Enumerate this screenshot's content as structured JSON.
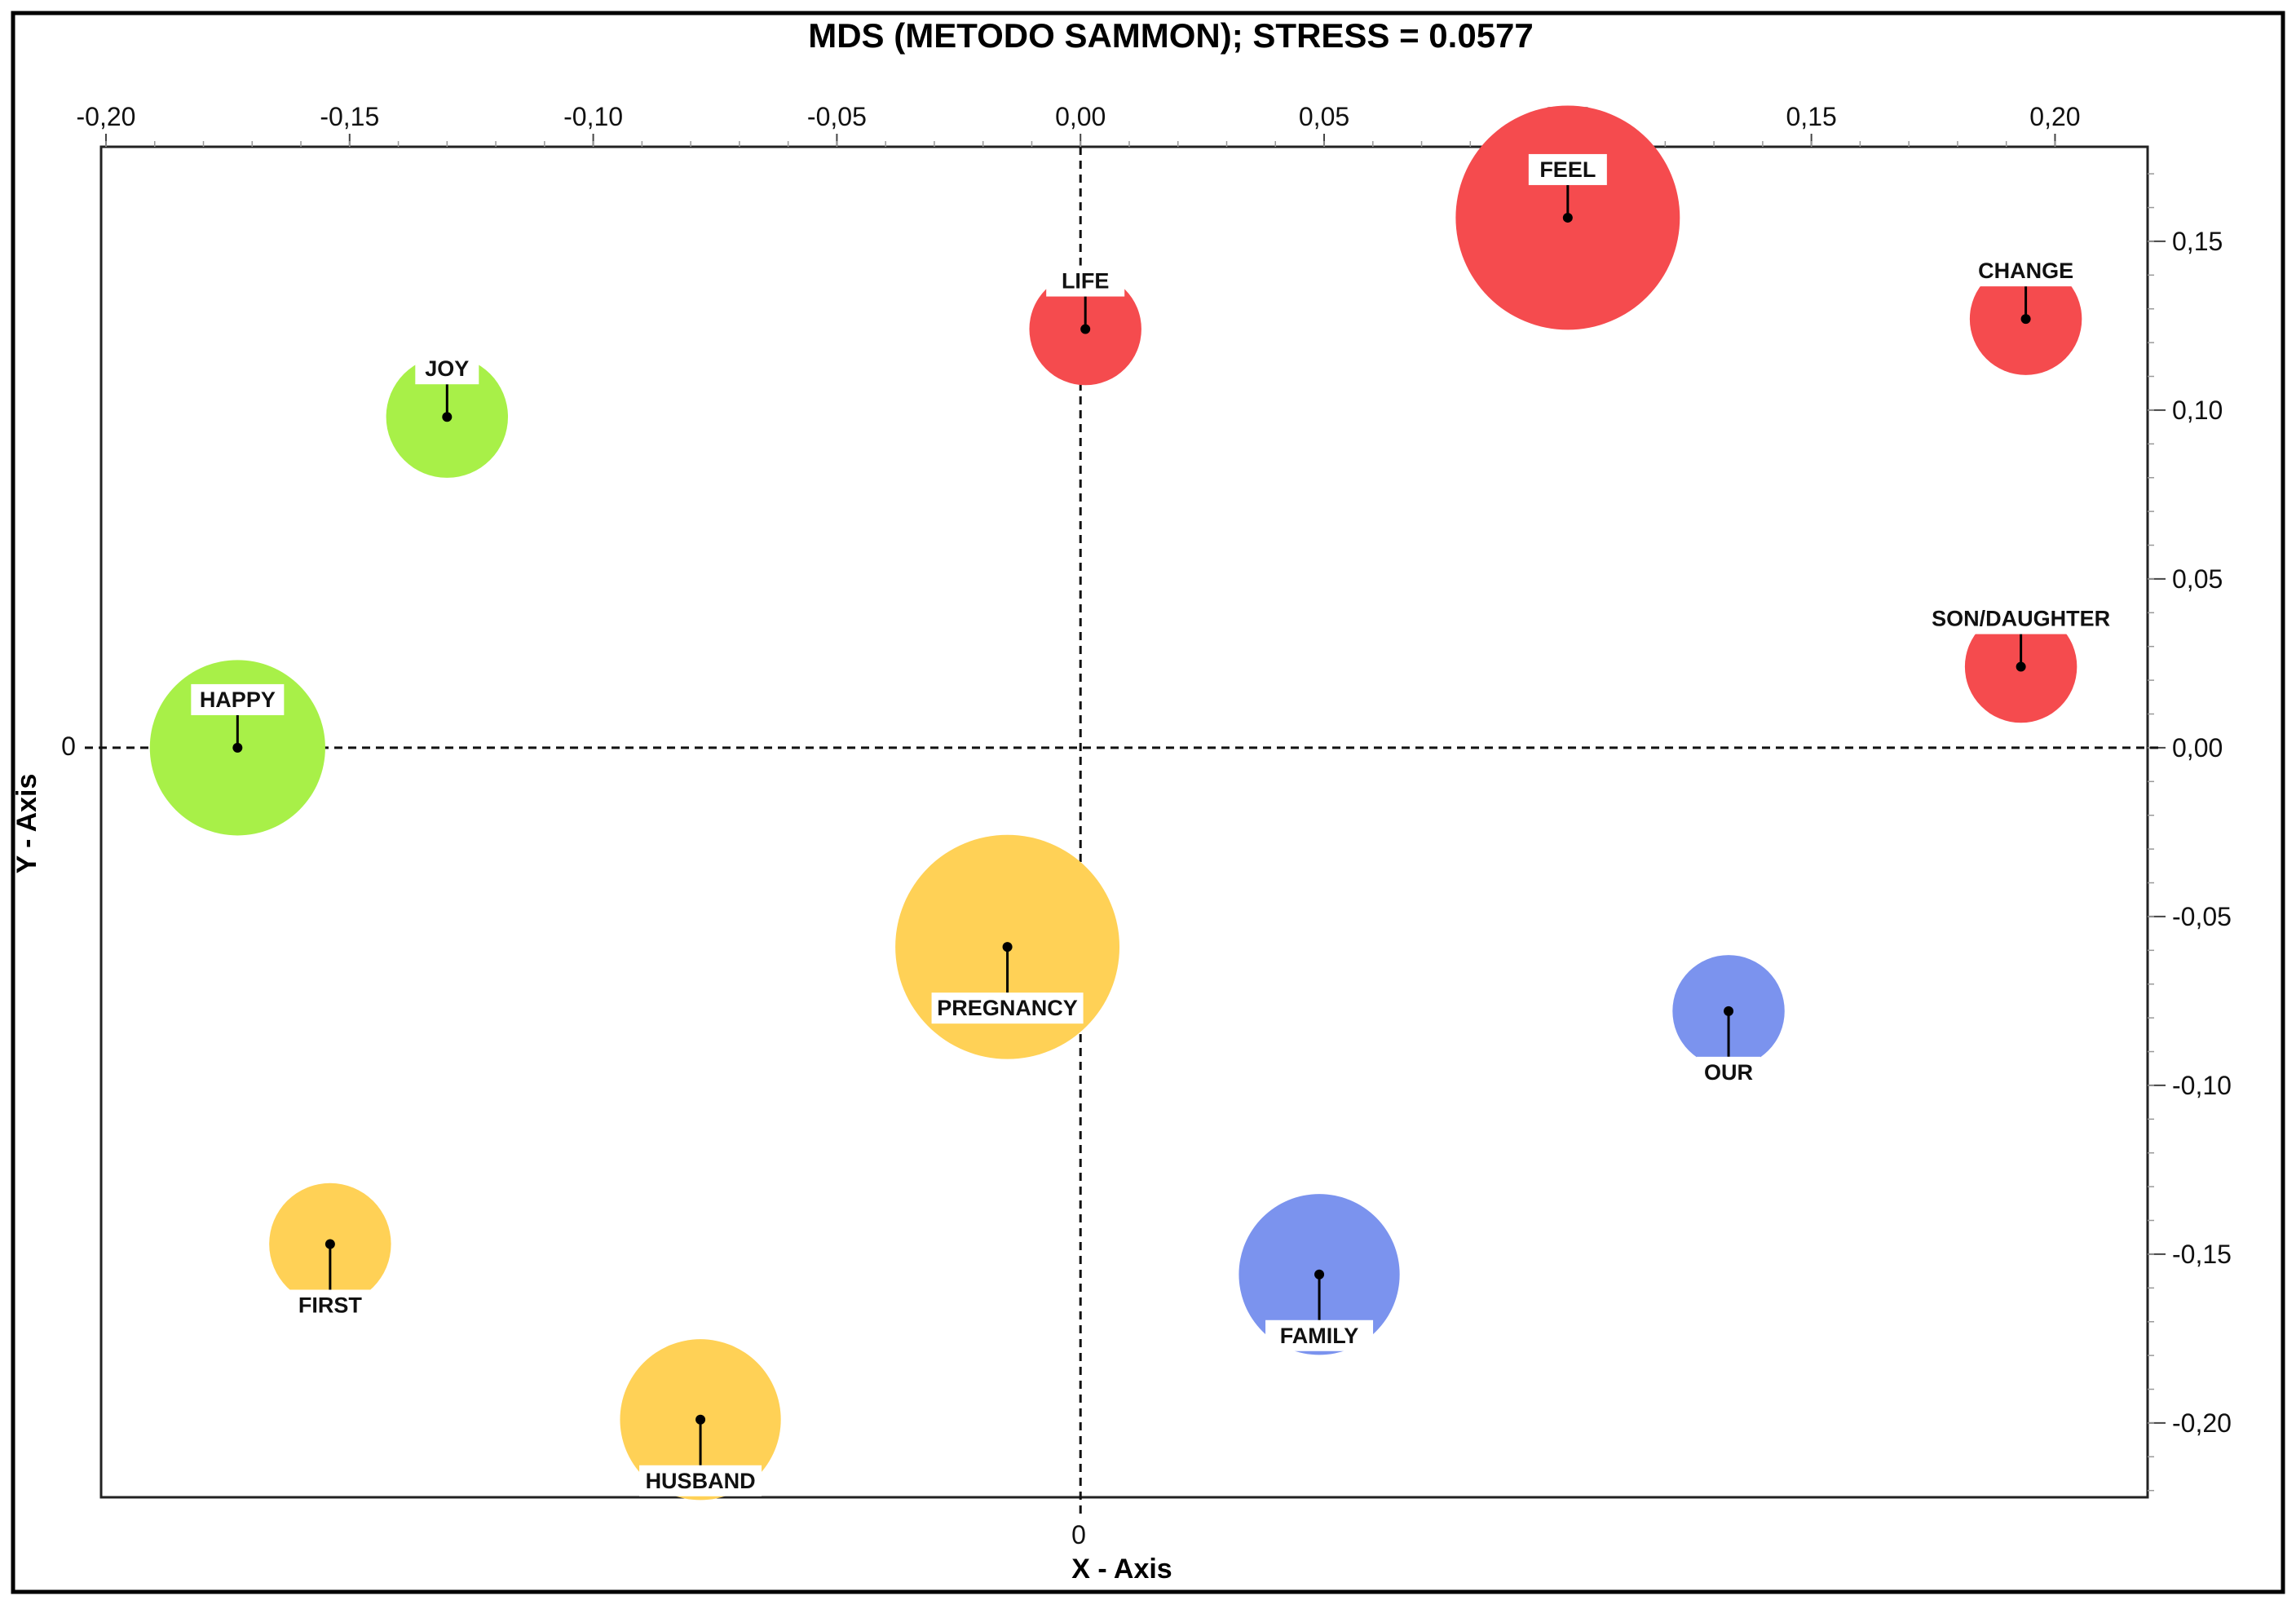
{
  "chart_data": {
    "type": "scatter",
    "title": "MDS (METODO SAMMON); STRESS = 0.0577",
    "xlabel": "X - Axis",
    "ylabel": "Y - Axis",
    "xlim": [
      -0.201,
      0.219
    ],
    "ylim": [
      -0.222,
      0.178
    ],
    "x_ticks": [
      {
        "value": -0.2,
        "label": "-0,20"
      },
      {
        "value": -0.15,
        "label": "-0,15"
      },
      {
        "value": -0.1,
        "label": "-0,10"
      },
      {
        "value": -0.05,
        "label": "-0,05"
      },
      {
        "value": 0.0,
        "label": "0,00"
      },
      {
        "value": 0.05,
        "label": "0,05"
      },
      {
        "value": 0.1,
        "label": "0,10"
      },
      {
        "value": 0.15,
        "label": "0,15"
      },
      {
        "value": 0.2,
        "label": "0,20"
      }
    ],
    "y_ticks": [
      {
        "value": 0.15,
        "label": "0,15"
      },
      {
        "value": 0.1,
        "label": "0,10"
      },
      {
        "value": 0.05,
        "label": "0,05"
      },
      {
        "value": 0.0,
        "label": "0,00"
      },
      {
        "value": -0.05,
        "label": "-0,05"
      },
      {
        "value": -0.1,
        "label": "-0,10"
      },
      {
        "value": -0.15,
        "label": "-0,15"
      },
      {
        "value": -0.2,
        "label": "-0,20"
      }
    ],
    "zero_x_label": "0",
    "zero_y_label": "0",
    "reference_lines": {
      "x": 0,
      "y": 0,
      "style": "dashed"
    },
    "colors": {
      "red": "#f54b4e",
      "green": "#a8f048",
      "yellow": "#ffd156",
      "blue": "#7b93ee"
    },
    "points": [
      {
        "label": "FEEL",
        "x": 0.1,
        "y": 0.157,
        "size": 0.023,
        "color": "#f54b4e",
        "label_pos": "above"
      },
      {
        "label": "LIFE",
        "x": 0.001,
        "y": 0.124,
        "size": 0.0115,
        "color": "#f54b4e",
        "label_pos": "above"
      },
      {
        "label": "CHANGE",
        "x": 0.194,
        "y": 0.127,
        "size": 0.0115,
        "color": "#f54b4e",
        "label_pos": "above"
      },
      {
        "label": "SON/DAUGHTER",
        "x": 0.193,
        "y": 0.024,
        "size": 0.0115,
        "color": "#f54b4e",
        "label_pos": "above"
      },
      {
        "label": "JOY",
        "x": -0.13,
        "y": 0.098,
        "size": 0.0125,
        "color": "#a8f048",
        "label_pos": "above"
      },
      {
        "label": "HAPPY",
        "x": -0.173,
        "y": 0.0,
        "size": 0.018,
        "color": "#a8f048",
        "label_pos": "above"
      },
      {
        "label": "PREGNANCY",
        "x": -0.015,
        "y": -0.059,
        "size": 0.023,
        "color": "#ffd156",
        "label_pos": "below"
      },
      {
        "label": "OUR",
        "x": 0.133,
        "y": -0.078,
        "size": 0.0115,
        "color": "#7b93ee",
        "label_pos": "below"
      },
      {
        "label": "FIRST",
        "x": -0.154,
        "y": -0.147,
        "size": 0.0125,
        "color": "#ffd156",
        "label_pos": "below"
      },
      {
        "label": "FAMILY",
        "x": 0.049,
        "y": -0.156,
        "size": 0.0165,
        "color": "#7b93ee",
        "label_pos": "below"
      },
      {
        "label": "HUSBAND",
        "x": -0.078,
        "y": -0.199,
        "size": 0.0165,
        "color": "#ffd156",
        "label_pos": "below"
      }
    ]
  }
}
